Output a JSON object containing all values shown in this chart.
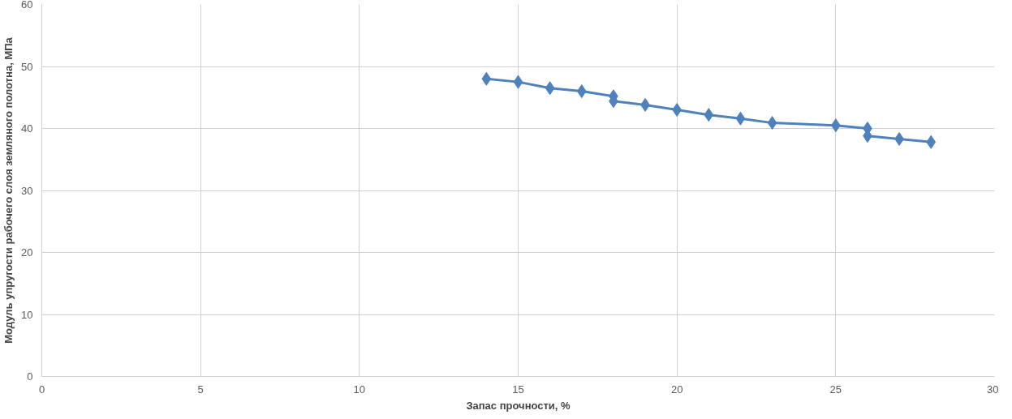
{
  "chart_data": {
    "type": "line",
    "xlabel": "Запас прочности, %",
    "ylabel": "Модуль упругости рабочего слоя земляного полотна, МПа",
    "x": [
      14,
      15,
      16,
      17,
      18,
      18,
      19,
      20,
      21,
      22,
      23,
      25,
      26,
      26,
      27,
      28
    ],
    "series": [
      {
        "color": "#4f81bd",
        "values": [
          48.0,
          47.5,
          46.5,
          46.0,
          45.2,
          44.4,
          43.8,
          43.0,
          42.2,
          41.6,
          40.9,
          40.5,
          40.0,
          38.8,
          38.3,
          37.8
        ]
      }
    ],
    "xlim": [
      0,
      30
    ],
    "xticks": [
      0,
      5,
      10,
      15,
      20,
      25,
      30
    ],
    "ylim": [
      0,
      60
    ],
    "yticks": [
      0,
      10,
      20,
      30,
      40,
      50,
      60
    ],
    "grid": true,
    "marker": "diamond",
    "line_style": "solid"
  }
}
